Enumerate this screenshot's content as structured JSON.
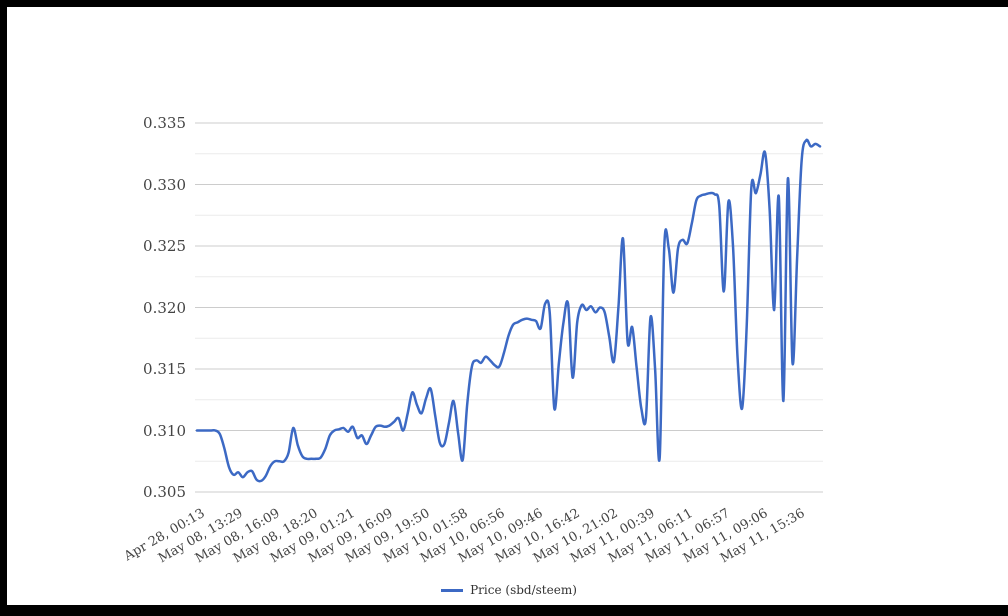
{
  "chart_data": {
    "type": "line",
    "title": "",
    "legend_position": "bottom",
    "grid": true,
    "x_tick_labels": [
      "Apr 28, 00:13",
      "May 08, 13:29",
      "May 08, 16:09",
      "May 08, 18:20",
      "May 09, 01:21",
      "May 09, 16:09",
      "May 09, 19:50",
      "May 10, 01:58",
      "May 10, 06:56",
      "May 10, 09:46",
      "May 10, 16:42",
      "May 10, 21:02",
      "May 11, 00:39",
      "May 11, 06:11",
      "May 11, 06:57",
      "May 11, 09:06",
      "May 11, 15:36"
    ],
    "y_axis": {
      "min": 0.305,
      "max": 0.335,
      "major_step": 0.005,
      "minor_step": 0.0025,
      "tick_labels": [
        "0.305",
        "0.310",
        "0.315",
        "0.320",
        "0.325",
        "0.330",
        "0.335"
      ]
    },
    "series": [
      {
        "name": "Price (sbd/steem)",
        "color": "#3c69c4",
        "values": [
          0.31,
          0.31,
          0.31,
          0.31,
          0.31,
          0.3097,
          0.3085,
          0.307,
          0.3064,
          0.3066,
          0.3062,
          0.3066,
          0.3067,
          0.306,
          0.3059,
          0.3063,
          0.3071,
          0.3075,
          0.3075,
          0.3075,
          0.3082,
          0.3102,
          0.3088,
          0.3079,
          0.3077,
          0.3077,
          0.3077,
          0.3078,
          0.3085,
          0.3096,
          0.31,
          0.3101,
          0.3102,
          0.3099,
          0.3103,
          0.3094,
          0.3096,
          0.3089,
          0.3096,
          0.3103,
          0.3104,
          0.3103,
          0.3104,
          0.3107,
          0.311,
          0.31,
          0.3114,
          0.3131,
          0.3121,
          0.3114,
          0.3126,
          0.3134,
          0.3112,
          0.309,
          0.3089,
          0.3106,
          0.3124,
          0.3098,
          0.3076,
          0.3122,
          0.3152,
          0.3157,
          0.3155,
          0.316,
          0.3157,
          0.3153,
          0.3152,
          0.3163,
          0.3177,
          0.3186,
          0.3188,
          0.319,
          0.3191,
          0.319,
          0.3189,
          0.3183,
          0.3203,
          0.3196,
          0.3118,
          0.3155,
          0.3188,
          0.3203,
          0.3143,
          0.3188,
          0.3202,
          0.3198,
          0.3201,
          0.3196,
          0.32,
          0.3196,
          0.3176,
          0.3156,
          0.32,
          0.3256,
          0.3172,
          0.3184,
          0.315,
          0.3118,
          0.311,
          0.3192,
          0.315,
          0.3078,
          0.325,
          0.3248,
          0.3212,
          0.3248,
          0.3255,
          0.3252,
          0.3268,
          0.3287,
          0.3291,
          0.3292,
          0.3293,
          0.3292,
          0.3283,
          0.3213,
          0.3286,
          0.325,
          0.316,
          0.3118,
          0.3185,
          0.3297,
          0.3293,
          0.3308,
          0.3326,
          0.328,
          0.3198,
          0.329,
          0.3124,
          0.3305,
          0.3155,
          0.324,
          0.332,
          0.3336,
          0.3331,
          0.3333,
          0.3331
        ]
      }
    ]
  },
  "legend": {
    "label": "Price (sbd/steem)"
  },
  "colors": {
    "line": "#3c69c4",
    "gridline_major": "#cccccc",
    "gridline_minor": "#ebebeb",
    "axis_label": "#444444",
    "legend_text": "#333333",
    "frame": "#000000",
    "background": "#ffffff"
  }
}
